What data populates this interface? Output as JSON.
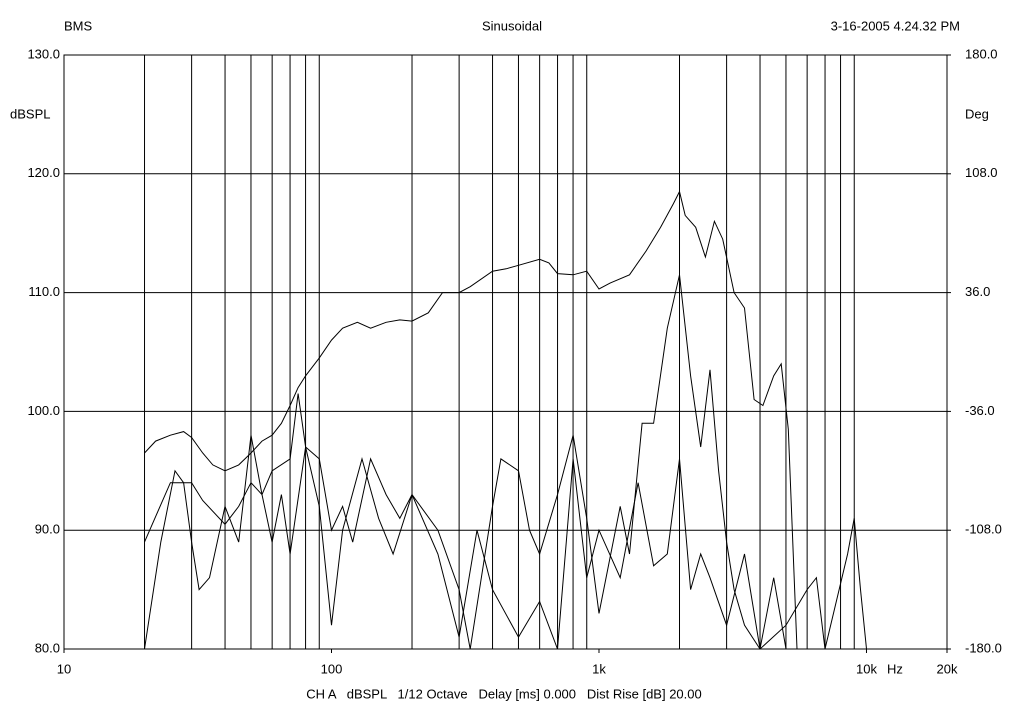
{
  "chart_data": {
    "type": "line",
    "title_left": "BMS",
    "title": "Sinusoidal",
    "title_right": "3-16-2005 4.24.32 PM",
    "ylabel": "dBSPL",
    "y2label": "Deg",
    "xlabel": "Hz",
    "footer": "CH A   dBSPL   1/12 Octave   Delay [ms] 0.000   Dist Rise [dB] 20.00",
    "xscale": "log",
    "grid": true,
    "xlim": [
      10,
      20000
    ],
    "xticks": [
      {
        "value": 10,
        "label": "10"
      },
      {
        "value": 100,
        "label": "100"
      },
      {
        "value": 1000,
        "label": "1k"
      },
      {
        "value": 10000,
        "label": "10k"
      },
      {
        "value": 20000,
        "label": "20k"
      }
    ],
    "xgrid": [
      20,
      30,
      40,
      50,
      60,
      70,
      80,
      90,
      200,
      300,
      400,
      500,
      600,
      700,
      800,
      900,
      2000,
      3000,
      4000,
      5000,
      6000,
      7000,
      8000,
      9000
    ],
    "ylim": [
      80,
      130
    ],
    "yticks": [
      {
        "value": 80,
        "label": "80.0"
      },
      {
        "value": 90,
        "label": "90.0"
      },
      {
        "value": 100,
        "label": "100.0"
      },
      {
        "value": 110,
        "label": "110.0"
      },
      {
        "value": 120,
        "label": "120.0"
      },
      {
        "value": 130,
        "label": "130.0"
      }
    ],
    "y2lim": [
      -180,
      180
    ],
    "y2ticks": [
      {
        "value": -180,
        "label": "-180.0"
      },
      {
        "value": -108,
        "label": "-108.0"
      },
      {
        "value": -36,
        "label": "-36.0"
      },
      {
        "value": 36,
        "label": "36.0"
      },
      {
        "value": 108,
        "label": "108.0"
      },
      {
        "value": 180,
        "label": "180.0"
      }
    ],
    "series": [
      {
        "color": "#000000",
        "x": [
          20,
          22,
          25,
          28,
          30,
          33,
          36,
          40,
          45,
          50,
          55,
          60,
          65,
          70,
          75,
          80,
          90,
          100,
          110,
          125,
          140,
          160,
          180,
          200,
          230,
          260,
          300,
          330,
          400,
          450,
          500,
          600,
          650,
          700,
          800,
          900,
          1000,
          1100,
          1300,
          1500,
          1700,
          1900,
          2000,
          2100,
          2300,
          2500,
          2700,
          2900,
          3200,
          3500,
          3800,
          4100,
          4500,
          4800,
          5100,
          5500
        ],
        "values": [
          96.5,
          97.5,
          98,
          98.3,
          97.8,
          96.5,
          95.5,
          95,
          95.5,
          96.5,
          97.5,
          98,
          99,
          100.5,
          102,
          103,
          104.5,
          106,
          107,
          107.5,
          107,
          107.5,
          107.7,
          107.6,
          108.3,
          110,
          110,
          110.5,
          111.8,
          112,
          112.3,
          112.8,
          112.5,
          111.6,
          111.5,
          111.8,
          110.3,
          110.8,
          111.5,
          113.5,
          115.5,
          117.5,
          118.5,
          116.5,
          115.5,
          113,
          116,
          114.5,
          110,
          108.7,
          101,
          100.5,
          103,
          104,
          98.5,
          80
        ]
      },
      {
        "color": "#000000",
        "x": [
          20,
          25,
          30,
          33,
          40,
          45,
          50,
          55,
          60,
          70,
          75,
          80,
          90,
          100,
          110,
          120,
          140,
          160,
          180,
          200,
          250,
          300,
          330,
          400,
          430,
          500,
          550,
          600,
          700,
          800,
          900,
          1000,
          1200,
          1300,
          1450,
          1600,
          1800,
          2000,
          2200,
          2400,
          2600,
          2800,
          3000,
          3200,
          3500,
          4000,
          5000,
          6000,
          6500,
          7000,
          8500,
          9000,
          9500,
          10000
        ],
        "values": [
          89,
          94,
          94,
          92.5,
          90.5,
          92,
          94,
          93,
          95,
          96,
          101.5,
          97,
          96,
          90,
          92,
          89,
          96,
          93,
          91,
          93,
          90,
          85,
          80,
          92,
          96,
          95,
          90,
          88,
          93,
          98,
          91,
          83,
          92,
          88,
          99,
          99,
          107,
          111.5,
          103,
          97,
          103.5,
          95,
          89,
          85,
          82,
          80,
          82,
          85,
          86,
          80,
          88,
          91,
          85,
          80
        ]
      },
      {
        "color": "#000000",
        "x": [
          20,
          23,
          26,
          28,
          30,
          32,
          35,
          40,
          45,
          50,
          55,
          60,
          65,
          70,
          80,
          90,
          100,
          110,
          130,
          150,
          170,
          200,
          250,
          300,
          350,
          400,
          500,
          600,
          700,
          800,
          900,
          1000,
          1200,
          1400,
          1600,
          1800,
          2000,
          2200,
          2400,
          2600,
          3000,
          3500,
          4000,
          4500,
          5000
        ],
        "values": [
          80,
          89,
          95,
          94,
          89,
          85,
          86,
          92,
          89,
          98,
          93,
          89,
          93,
          88,
          97,
          92,
          82,
          90,
          96,
          91,
          88,
          93,
          88,
          81,
          90,
          85,
          81,
          84,
          80,
          96,
          86,
          90,
          86,
          94,
          87,
          88,
          96,
          85,
          88,
          86,
          82,
          88,
          80,
          86,
          80
        ]
      }
    ]
  }
}
